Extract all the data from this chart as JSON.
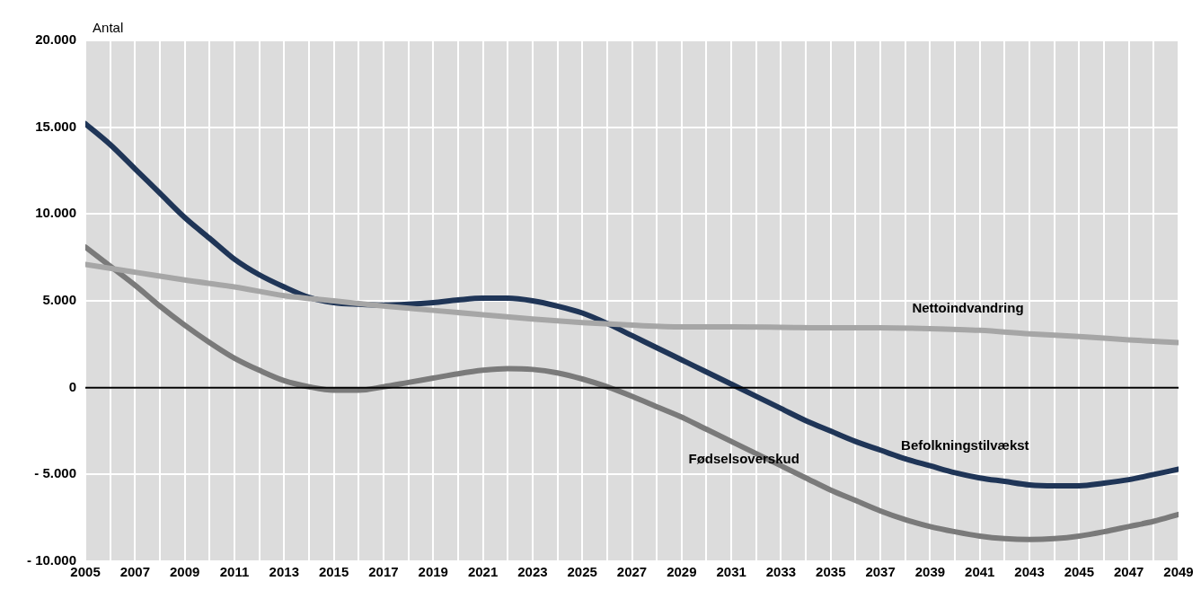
{
  "chart_data": {
    "type": "line",
    "ylabel": "Antal",
    "x": [
      2005,
      2006,
      2007,
      2008,
      2009,
      2010,
      2011,
      2012,
      2013,
      2014,
      2015,
      2016,
      2017,
      2018,
      2019,
      2020,
      2021,
      2022,
      2023,
      2024,
      2025,
      2026,
      2027,
      2028,
      2029,
      2030,
      2031,
      2032,
      2033,
      2034,
      2035,
      2036,
      2037,
      2038,
      2039,
      2040,
      2041,
      2042,
      2043,
      2044,
      2045,
      2046,
      2047,
      2048,
      2049
    ],
    "series": [
      {
        "name": "Nettoindvandring",
        "color": "#a6a6a6",
        "x": [
          2005,
          2007,
          2009,
          2011,
          2013,
          2015,
          2017,
          2019,
          2021,
          2023,
          2025,
          2027,
          2029,
          2031,
          2033,
          2035,
          2037,
          2039,
          2041,
          2043,
          2045,
          2047,
          2049
        ],
        "values": [
          7100,
          6650,
          6200,
          5800,
          5300,
          5000,
          4700,
          4450,
          4200,
          3950,
          3750,
          3600,
          3500,
          3500,
          3480,
          3450,
          3450,
          3400,
          3300,
          3100,
          2950,
          2750,
          2600
        ]
      },
      {
        "name": "Befolkningstilvækst",
        "color": "#1f3557",
        "values": [
          15200,
          14000,
          12600,
          11200,
          9800,
          8600,
          7400,
          6500,
          5800,
          5200,
          4900,
          4800,
          4750,
          4800,
          4900,
          5050,
          5150,
          5150,
          5000,
          4700,
          4300,
          3700,
          3000,
          2300,
          1600,
          900,
          200,
          -500,
          -1200,
          -1900,
          -2500,
          -3100,
          -3600,
          -4100,
          -4500,
          -4900,
          -5200,
          -5400,
          -5600,
          -5650,
          -5650,
          -5500,
          -5300,
          -5000,
          -4700
        ]
      },
      {
        "name": "Fødselsoverskud",
        "color": "#7a7a7a",
        "values": [
          8100,
          7000,
          5900,
          4700,
          3600,
          2600,
          1700,
          1000,
          400,
          50,
          -150,
          -150,
          50,
          300,
          550,
          800,
          1000,
          1100,
          1050,
          850,
          500,
          50,
          -500,
          -1100,
          -1700,
          -2400,
          -3100,
          -3800,
          -4500,
          -5200,
          -5900,
          -6500,
          -7100,
          -7600,
          -8000,
          -8300,
          -8550,
          -8700,
          -8750,
          -8700,
          -8550,
          -8300,
          -8000,
          -7700,
          -7300
        ]
      }
    ],
    "xlim": [
      2005,
      2049
    ],
    "xticks": [
      2005,
      {
        "value": 2006,
        "label": null
      },
      2007,
      {
        "value": 2008,
        "label": null
      },
      2009,
      {
        "value": 2010,
        "label": null
      },
      2011,
      {
        "value": 2012,
        "label": null
      },
      2013,
      {
        "value": 2014,
        "label": null
      },
      2015,
      {
        "value": 2016,
        "label": null
      },
      2017,
      {
        "value": 2018,
        "label": null
      },
      2019,
      {
        "value": 2020,
        "label": null
      },
      2021,
      {
        "value": 2022,
        "label": null
      },
      2023,
      {
        "value": 2024,
        "label": null
      },
      2025,
      {
        "value": 2026,
        "label": null
      },
      2027,
      {
        "value": 2028,
        "label": null
      },
      2029,
      {
        "value": 2030,
        "label": null
      },
      2031,
      {
        "value": 2032,
        "label": null
      },
      2033,
      {
        "value": 2034,
        "label": null
      },
      2035,
      {
        "value": 2036,
        "label": null
      },
      2037,
      {
        "value": 2038,
        "label": null
      },
      2039,
      {
        "value": 2040,
        "label": null
      },
      2041,
      {
        "value": 2042,
        "label": null
      },
      2043,
      {
        "value": 2044,
        "label": null
      },
      2045,
      {
        "value": 2046,
        "label": null
      },
      2047,
      {
        "value": 2048,
        "label": null
      },
      2049
    ],
    "ylim": [
      -10000,
      20000
    ],
    "yticks": [
      {
        "value": -10000,
        "label": "- 10.000"
      },
      {
        "value": -5000,
        "label": "- 5.000"
      },
      {
        "value": 0,
        "label": "0"
      },
      {
        "value": 5000,
        "label": "5.000"
      },
      {
        "value": 10000,
        "label": "10.000"
      },
      {
        "value": 15000,
        "label": "15.000"
      },
      {
        "value": 20000,
        "label": "20.000"
      }
    ],
    "ref_lines": [
      {
        "axis": "y",
        "value": 0,
        "color": "#000000"
      }
    ],
    "grid": true,
    "legend": false,
    "marker": "none",
    "line_style": "solid"
  }
}
